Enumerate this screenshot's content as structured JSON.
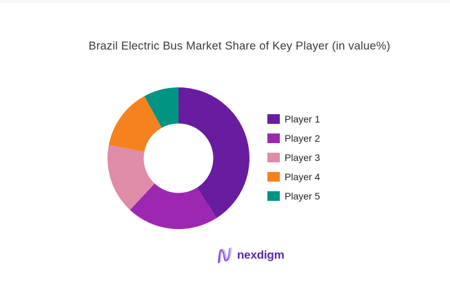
{
  "page": {
    "background": "#ffffff"
  },
  "chart_data": {
    "type": "pie",
    "subtype": "donut",
    "title": "Brazil Electric Bus Market Share of Key Player (in value%)",
    "labels": [
      "Player 1",
      "Player 2",
      "Player 3",
      "Player 4",
      "Player 5"
    ],
    "values": [
      41,
      21,
      16,
      14,
      8
    ],
    "unit": "percent of value",
    "colors": [
      "#681CA0",
      "#9C27B0",
      "#DF8CA9",
      "#F5821F",
      "#009483"
    ],
    "start_angle_deg": 0,
    "direction": "clockwise",
    "inner_radius_ratio": 0.49,
    "legend_position": "right",
    "data_labels": false
  },
  "footer": {
    "brand_name": "nexdigm",
    "logo_icon": "nexdigm-n-wave-logo",
    "brand_text_color": "#5a2b9e",
    "logo_stroke_colors": [
      "#c9b4f0",
      "#8a5ce0",
      "#6c2bd9"
    ]
  }
}
